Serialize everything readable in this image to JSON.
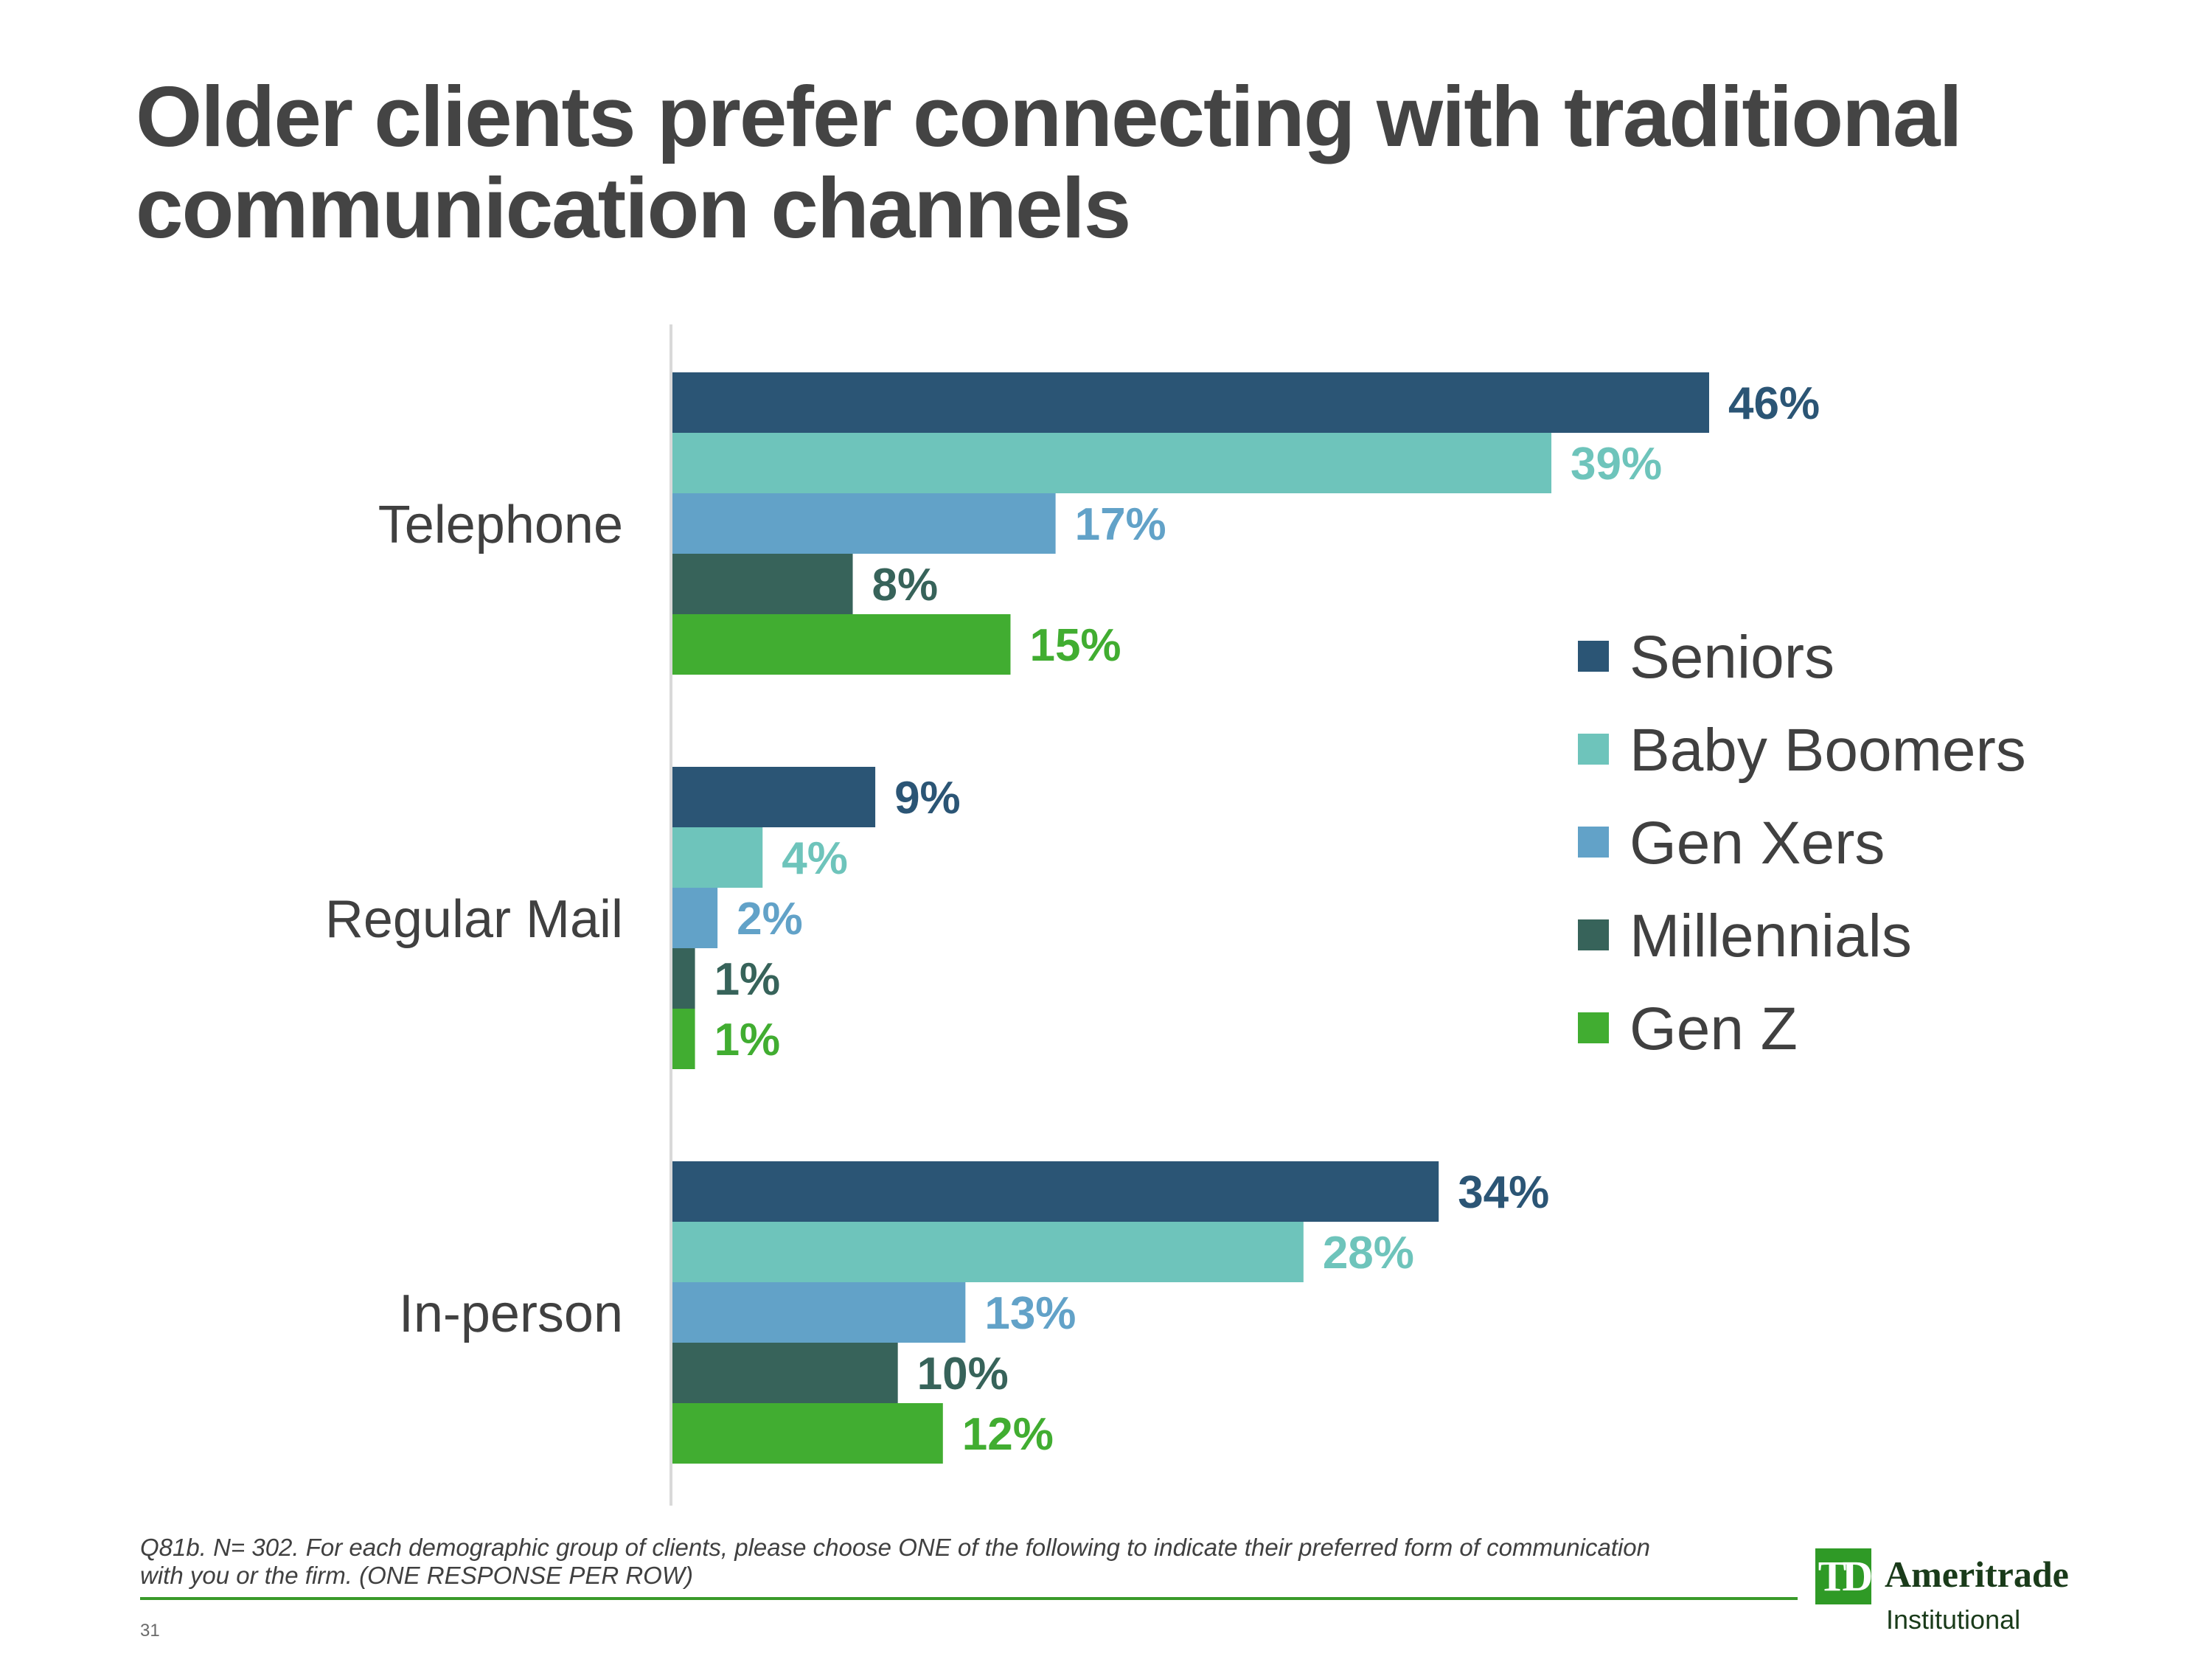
{
  "slide": {
    "title": "Older clients prefer connecting with traditional communication channels",
    "footnote": "Q81b. N= 302.  For each demographic group of clients, please choose ONE of the following to indicate their preferred form of communication with you or the firm. (ONE RESPONSE PER ROW)",
    "page_number": "31"
  },
  "logo": {
    "mark": "TD",
    "name": "Ameritrade",
    "subtitle": "Institutional"
  },
  "chart_data": {
    "type": "bar",
    "orientation": "horizontal",
    "categories": [
      "Telephone",
      "Regular Mail",
      "In-person"
    ],
    "series": [
      {
        "name": "Seniors",
        "color": "#2b5575",
        "values": [
          46,
          9,
          34
        ]
      },
      {
        "name": "Baby Boomers",
        "color": "#6ec4bb",
        "values": [
          39,
          4,
          28
        ]
      },
      {
        "name": "Gen Xers",
        "color": "#62a2c8",
        "values": [
          17,
          2,
          13
        ]
      },
      {
        "name": "Millennials",
        "color": "#37635a",
        "values": [
          8,
          1,
          10
        ]
      },
      {
        "name": "Gen Z",
        "color": "#41ad31",
        "values": [
          15,
          1,
          12
        ]
      }
    ],
    "value_suffix": "%",
    "xlim": [
      0,
      50
    ],
    "grid": false,
    "legend_position": "right"
  }
}
